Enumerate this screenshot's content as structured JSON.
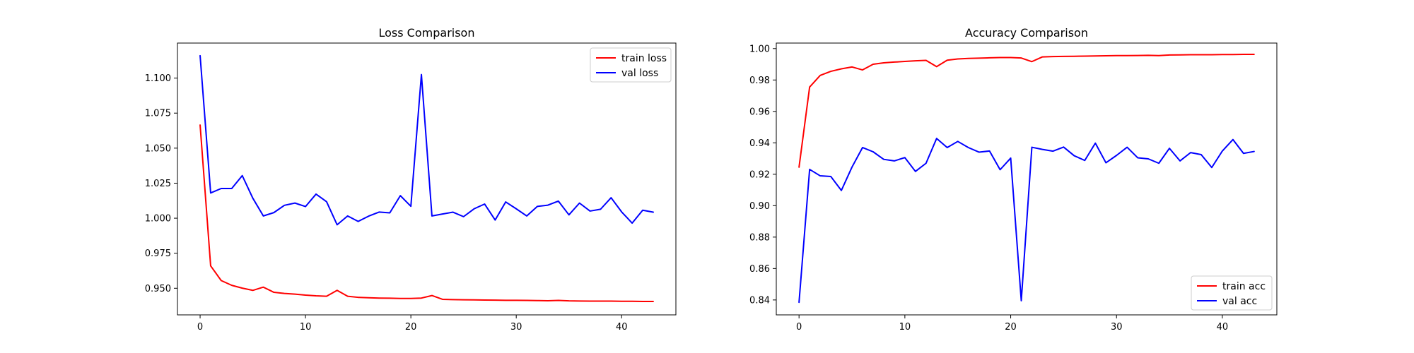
{
  "chart_data": [
    {
      "type": "line",
      "title": "Loss Comparison",
      "xlabel": "",
      "ylabel": "",
      "xlim": [
        -2.15,
        45.15
      ],
      "ylim": [
        0.931,
        1.125
      ],
      "x_ticks": [
        0,
        10,
        20,
        30,
        40
      ],
      "y_ticks": [
        0.95,
        0.975,
        1.0,
        1.025,
        1.05,
        1.075,
        1.1
      ],
      "y_tick_labels": [
        "0.950",
        "0.975",
        "1.000",
        "1.025",
        "1.050",
        "1.075",
        "1.100"
      ],
      "legend_position": "top-right",
      "series": [
        {
          "name": "train loss",
          "color": "#ff0000",
          "x": [
            0,
            1,
            2,
            3,
            4,
            5,
            6,
            7,
            8,
            9,
            10,
            11,
            12,
            13,
            14,
            15,
            16,
            17,
            18,
            19,
            20,
            21,
            22,
            23,
            24,
            25,
            26,
            27,
            28,
            29,
            30,
            31,
            32,
            33,
            34,
            35,
            36,
            37,
            38,
            39,
            40,
            41,
            42,
            43
          ],
          "values": [
            1.0665,
            0.966,
            0.9555,
            0.9521,
            0.9501,
            0.9485,
            0.9508,
            0.9471,
            0.9463,
            0.9458,
            0.9451,
            0.9446,
            0.9443,
            0.9485,
            0.9443,
            0.9435,
            0.9432,
            0.943,
            0.9429,
            0.9427,
            0.9427,
            0.943,
            0.9448,
            0.9421,
            0.9419,
            0.9418,
            0.9417,
            0.9416,
            0.9415,
            0.9414,
            0.9414,
            0.9413,
            0.9412,
            0.9411,
            0.9413,
            0.941,
            0.9409,
            0.9408,
            0.9408,
            0.9408,
            0.9407,
            0.9407,
            0.9406,
            0.9406
          ]
        },
        {
          "name": "val loss",
          "color": "#0000ff",
          "x": [
            0,
            1,
            2,
            3,
            4,
            5,
            6,
            7,
            8,
            9,
            10,
            11,
            12,
            13,
            14,
            15,
            16,
            17,
            18,
            19,
            20,
            21,
            22,
            23,
            24,
            25,
            26,
            27,
            28,
            29,
            30,
            31,
            32,
            33,
            34,
            35,
            36,
            37,
            38,
            39,
            40,
            41,
            42,
            43
          ],
          "values": [
            1.116,
            1.018,
            1.0212,
            1.0212,
            1.0304,
            1.0143,
            1.0016,
            1.004,
            1.0092,
            1.0108,
            1.0083,
            1.0172,
            1.0118,
            0.9953,
            1.0016,
            0.9977,
            1.0015,
            1.0044,
            1.0038,
            1.0161,
            1.0085,
            1.1025,
            1.0016,
            1.003,
            1.0043,
            1.0011,
            1.0067,
            1.0101,
            0.9987,
            1.0116,
            1.0067,
            1.0016,
            1.0084,
            1.0093,
            1.0122,
            1.0024,
            1.0108,
            1.0051,
            1.0064,
            1.0146,
            1.0045,
            0.9965,
            1.0057,
            1.0043
          ]
        }
      ]
    },
    {
      "type": "line",
      "title": "Accuracy Comparison",
      "xlabel": "",
      "ylabel": "",
      "xlim": [
        -2.15,
        45.15
      ],
      "ylim": [
        0.8305,
        1.0035
      ],
      "x_ticks": [
        0,
        10,
        20,
        30,
        40
      ],
      "y_ticks": [
        0.84,
        0.86,
        0.88,
        0.9,
        0.92,
        0.94,
        0.96,
        0.98,
        1.0
      ],
      "y_tick_labels": [
        "0.84",
        "0.86",
        "0.88",
        "0.90",
        "0.92",
        "0.94",
        "0.96",
        "0.98",
        "1.00"
      ],
      "legend_position": "bottom-right",
      "series": [
        {
          "name": "train acc",
          "color": "#ff0000",
          "x": [
            0,
            1,
            2,
            3,
            4,
            5,
            6,
            7,
            8,
            9,
            10,
            11,
            12,
            13,
            14,
            15,
            16,
            17,
            18,
            19,
            20,
            21,
            22,
            23,
            24,
            25,
            26,
            27,
            28,
            29,
            30,
            31,
            32,
            33,
            34,
            35,
            36,
            37,
            38,
            39,
            40,
            41,
            42,
            43
          ],
          "values": [
            0.9245,
            0.9755,
            0.9829,
            0.9855,
            0.9871,
            0.9883,
            0.9864,
            0.99,
            0.9909,
            0.9914,
            0.9918,
            0.9922,
            0.9925,
            0.9885,
            0.9926,
            0.9934,
            0.9937,
            0.9939,
            0.9941,
            0.9943,
            0.9943,
            0.994,
            0.9917,
            0.9947,
            0.9949,
            0.995,
            0.9951,
            0.9952,
            0.9953,
            0.9954,
            0.9955,
            0.9955,
            0.9956,
            0.9957,
            0.9955,
            0.9959,
            0.996,
            0.9961,
            0.9961,
            0.9961,
            0.9962,
            0.9962,
            0.9963,
            0.9963
          ]
        },
        {
          "name": "val acc",
          "color": "#0000ff",
          "x": [
            0,
            1,
            2,
            3,
            4,
            5,
            6,
            7,
            8,
            9,
            10,
            11,
            12,
            13,
            14,
            15,
            16,
            17,
            18,
            19,
            20,
            21,
            22,
            23,
            24,
            25,
            26,
            27,
            28,
            29,
            30,
            31,
            32,
            33,
            34,
            35,
            36,
            37,
            38,
            39,
            40,
            41,
            42,
            43
          ],
          "values": [
            0.8385,
            0.9231,
            0.919,
            0.9186,
            0.9097,
            0.9245,
            0.937,
            0.9343,
            0.9295,
            0.9285,
            0.9306,
            0.9218,
            0.927,
            0.9428,
            0.937,
            0.9409,
            0.937,
            0.9341,
            0.9348,
            0.9229,
            0.9303,
            0.8395,
            0.9372,
            0.9358,
            0.9347,
            0.9373,
            0.9318,
            0.9288,
            0.9398,
            0.9273,
            0.932,
            0.9372,
            0.9305,
            0.9298,
            0.927,
            0.9365,
            0.9285,
            0.9338,
            0.9325,
            0.9243,
            0.9348,
            0.9421,
            0.9333,
            0.9345
          ]
        }
      ]
    }
  ]
}
